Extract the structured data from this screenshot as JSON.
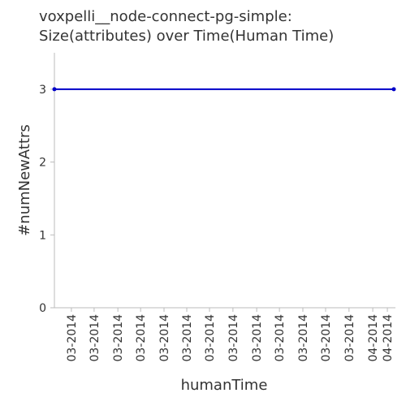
{
  "chart_data": {
    "type": "line",
    "title": [
      "voxpelli__node-connect-pg-simple:",
      "Size(attributes) over Time(Human Time)"
    ],
    "xlabel": "humanTime",
    "ylabel": "#numNewAttrs",
    "x": [
      0,
      1
    ],
    "series": [
      {
        "name": "numNewAttrs",
        "color": "#0000c8",
        "values": [
          3,
          3
        ]
      }
    ],
    "xlim": [
      0,
      1
    ],
    "xticks": [
      {
        "value": 0.05,
        "label": "03-2014"
      },
      {
        "value": 0.117,
        "label": "03-2014"
      },
      {
        "value": 0.187,
        "label": "03-2014"
      },
      {
        "value": 0.254,
        "label": "03-2014"
      },
      {
        "value": 0.323,
        "label": "03-2014"
      },
      {
        "value": 0.39,
        "label": "03-2014"
      },
      {
        "value": 0.457,
        "label": "03-2014"
      },
      {
        "value": 0.526,
        "label": "03-2014"
      },
      {
        "value": 0.596,
        "label": "03-2014"
      },
      {
        "value": 0.663,
        "label": "03-2014"
      },
      {
        "value": 0.732,
        "label": "03-2014"
      },
      {
        "value": 0.799,
        "label": "03-2014"
      },
      {
        "value": 0.868,
        "label": "03-2014"
      },
      {
        "value": 0.938,
        "label": "04-2014"
      },
      {
        "value": 0.981,
        "label": "04-2014"
      }
    ],
    "ylim": [
      0,
      3.5
    ],
    "yticks": [
      0,
      1,
      2,
      3
    ]
  }
}
